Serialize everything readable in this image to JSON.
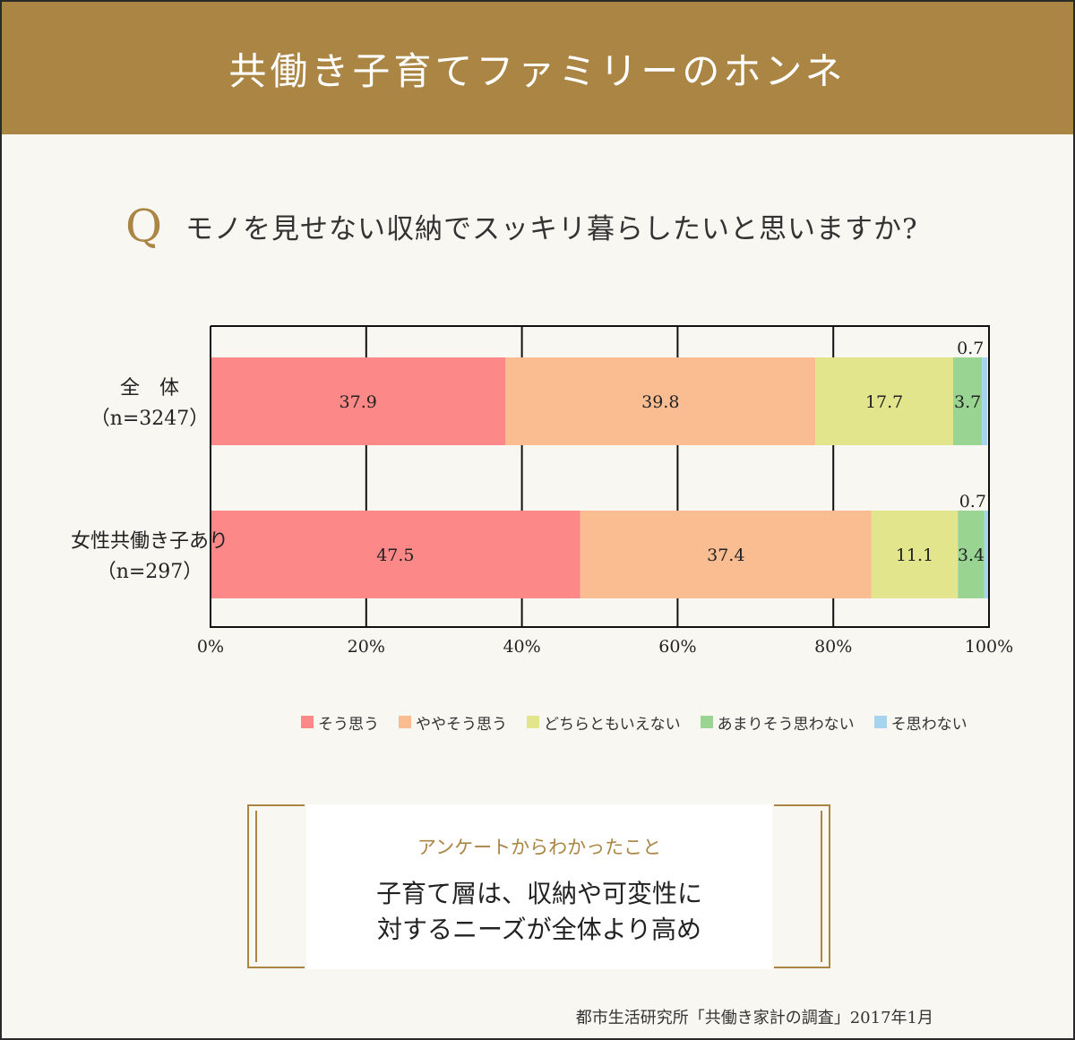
{
  "header": {
    "title": "共働き子育てファミリーのホンネ"
  },
  "question": {
    "mark": "Q",
    "text": "モノを見せない収納でスッキリ暮らしたいと思いますか?"
  },
  "chart_data": {
    "type": "bar",
    "orientation": "horizontal",
    "stacked": true,
    "categories": [
      {
        "name": "全　体",
        "sample": "（n=3247）"
      },
      {
        "name": "女性共働き子あり",
        "sample": "（n=297）"
      }
    ],
    "series": [
      {
        "name": "そう思う",
        "color": "#fc8888",
        "values": [
          37.9,
          47.5
        ]
      },
      {
        "name": "ややそう思う",
        "color": "#f9bd91",
        "values": [
          39.8,
          37.4
        ]
      },
      {
        "name": "どちらともいえない",
        "color": "#e2e58b",
        "values": [
          17.7,
          11.1
        ]
      },
      {
        "name": "あまりそう思わない",
        "color": "#99d493",
        "values": [
          3.7,
          3.4
        ]
      },
      {
        "name": "そ思わない",
        "color": "#a6d3ee",
        "values": [
          0.7,
          0.7
        ]
      }
    ],
    "data_labels": [
      [
        "37.9",
        "39.8",
        "17.7",
        "3.7",
        "0.7"
      ],
      [
        "47.5",
        "37.4",
        "11.1",
        "3.4",
        "0.7"
      ]
    ],
    "xlim": [
      0,
      100
    ],
    "xticks": [
      "0%",
      "20%",
      "40%",
      "60%",
      "80%",
      "100%"
    ],
    "grid": true,
    "legend_position": "bottom"
  },
  "finding": {
    "label": "アンケートからわかったこと",
    "line1": "子育て層は、収納や可変性に",
    "line2": "対するニーズが全体より高め"
  },
  "source": "都市生活研究所「共働き家計の調査」2017年1月"
}
